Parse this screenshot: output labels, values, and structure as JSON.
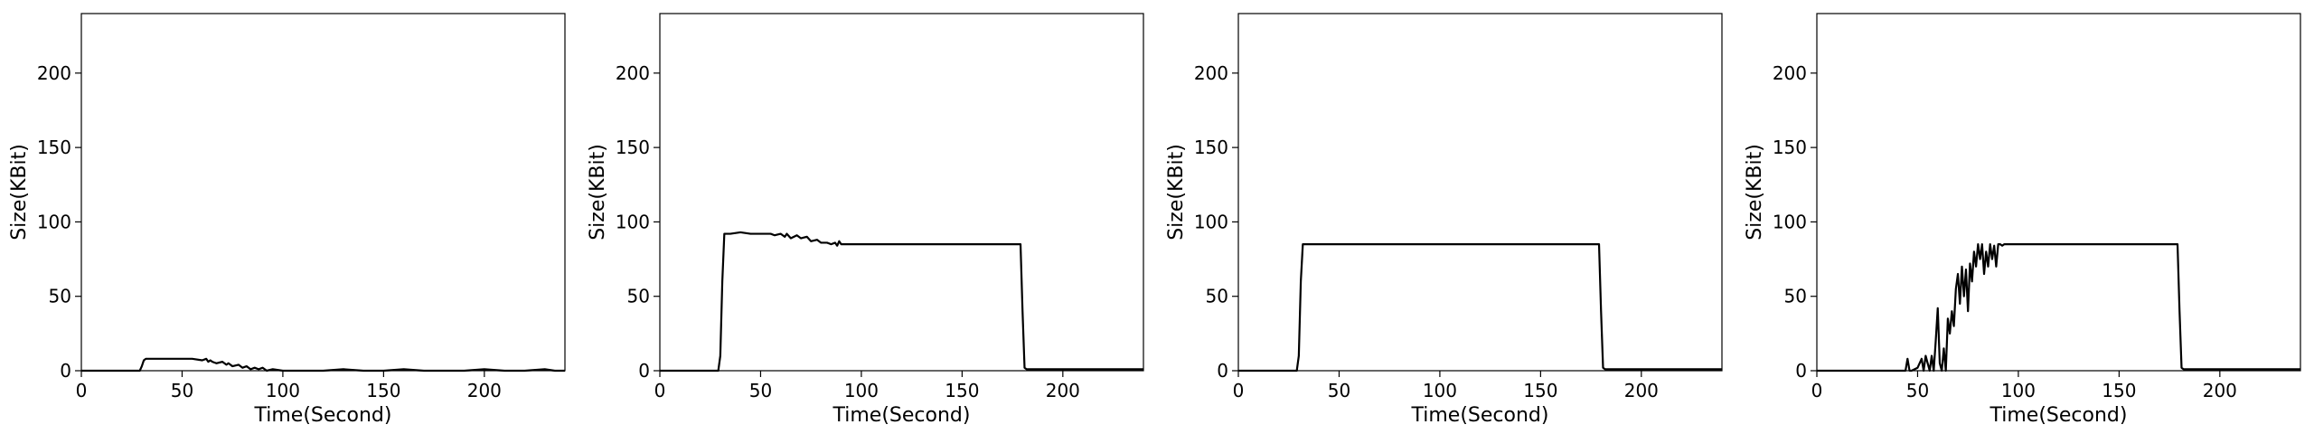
{
  "chart_data": [
    {
      "type": "line",
      "xlabel": "Time(Second)",
      "ylabel": "Size(KBit)",
      "xlim": [
        0,
        240
      ],
      "ylim": [
        0,
        240
      ],
      "xticks": [
        0,
        50,
        100,
        150,
        200
      ],
      "yticks": [
        0,
        50,
        100,
        150,
        200
      ],
      "grid": false,
      "series": [
        {
          "color": "#000000",
          "x": [
            0,
            5,
            10,
            15,
            20,
            25,
            29,
            30,
            31,
            32,
            35,
            40,
            45,
            50,
            55,
            60,
            62,
            63,
            64,
            65,
            67,
            70,
            72,
            73,
            75,
            78,
            80,
            82,
            84,
            86,
            88,
            90,
            92,
            95,
            100,
            110,
            120,
            130,
            140,
            150,
            160,
            170,
            180,
            190,
            200,
            210,
            220,
            230,
            235,
            240
          ],
          "y": [
            0,
            0,
            0,
            0,
            0,
            0,
            0,
            3,
            7,
            8,
            8,
            8,
            8,
            8,
            8,
            7,
            8,
            6,
            7,
            6,
            5,
            6,
            4,
            5,
            3,
            4,
            2,
            3,
            1,
            2,
            1,
            2,
            0,
            1,
            0,
            0,
            0,
            1,
            0,
            0,
            1,
            0,
            0,
            0,
            1,
            0,
            0,
            1,
            0,
            0
          ]
        }
      ]
    },
    {
      "type": "line",
      "xlabel": "Time(Second)",
      "ylabel": "Size(KBit)",
      "xlim": [
        0,
        240
      ],
      "ylim": [
        0,
        240
      ],
      "xticks": [
        0,
        50,
        100,
        150,
        200
      ],
      "yticks": [
        0,
        50,
        100,
        150,
        200
      ],
      "grid": false,
      "series": [
        {
          "color": "#000000",
          "x": [
            0,
            10,
            20,
            29,
            30,
            31,
            32,
            35,
            40,
            45,
            50,
            55,
            57,
            60,
            62,
            63,
            65,
            68,
            70,
            73,
            75,
            78,
            80,
            83,
            85,
            87,
            88,
            89,
            90,
            95,
            100,
            110,
            120,
            130,
            140,
            150,
            160,
            170,
            179,
            180,
            181,
            182,
            185,
            190,
            200,
            210,
            220,
            230,
            240
          ],
          "y": [
            0,
            0,
            0,
            0,
            10,
            60,
            92,
            92,
            93,
            92,
            92,
            92,
            91,
            92,
            90,
            92,
            89,
            91,
            89,
            90,
            87,
            88,
            86,
            86,
            85,
            86,
            84,
            87,
            85,
            85,
            85,
            85,
            85,
            85,
            85,
            85,
            85,
            85,
            85,
            40,
            2,
            1,
            1,
            1,
            1,
            1,
            1,
            1,
            1
          ]
        }
      ]
    },
    {
      "type": "line",
      "xlabel": "Time(Second)",
      "ylabel": "Size(KBit)",
      "xlim": [
        0,
        240
      ],
      "ylim": [
        0,
        240
      ],
      "xticks": [
        0,
        50,
        100,
        150,
        200
      ],
      "yticks": [
        0,
        50,
        100,
        150,
        200
      ],
      "grid": false,
      "series": [
        {
          "color": "#000000",
          "x": [
            0,
            10,
            20,
            29,
            30,
            31,
            32,
            35,
            40,
            50,
            60,
            70,
            80,
            90,
            100,
            110,
            120,
            130,
            140,
            150,
            160,
            170,
            179,
            180,
            181,
            182,
            185,
            190,
            200,
            210,
            220,
            230,
            240
          ],
          "y": [
            0,
            0,
            0,
            0,
            10,
            60,
            85,
            85,
            85,
            85,
            85,
            85,
            85,
            85,
            85,
            85,
            85,
            85,
            85,
            85,
            85,
            85,
            85,
            40,
            2,
            1,
            1,
            1,
            1,
            1,
            1,
            1,
            1
          ]
        }
      ]
    },
    {
      "type": "line",
      "xlabel": "Time(Second)",
      "ylabel": "Size(KBit)",
      "xlim": [
        0,
        240
      ],
      "ylim": [
        0,
        240
      ],
      "xticks": [
        0,
        50,
        100,
        150,
        200
      ],
      "yticks": [
        0,
        50,
        100,
        150,
        200
      ],
      "grid": false,
      "series": [
        {
          "color": "#000000",
          "x": [
            0,
            10,
            20,
            30,
            40,
            44,
            45,
            46,
            47,
            50,
            52,
            53,
            54,
            55,
            56,
            57,
            58,
            59,
            60,
            61,
            62,
            63,
            64,
            65,
            66,
            67,
            68,
            69,
            70,
            71,
            72,
            73,
            74,
            75,
            76,
            77,
            78,
            79,
            80,
            81,
            82,
            83,
            84,
            85,
            86,
            87,
            88,
            89,
            90,
            91,
            92,
            93,
            95,
            100,
            110,
            120,
            130,
            140,
            150,
            160,
            170,
            179,
            180,
            181,
            182,
            185,
            190,
            200,
            210,
            220,
            230,
            240
          ],
          "y": [
            0,
            0,
            0,
            0,
            0,
            0,
            8,
            0,
            0,
            2,
            8,
            0,
            10,
            5,
            0,
            10,
            0,
            20,
            42,
            5,
            0,
            15,
            0,
            35,
            25,
            40,
            30,
            55,
            65,
            45,
            70,
            50,
            68,
            40,
            72,
            60,
            80,
            70,
            85,
            75,
            85,
            65,
            80,
            70,
            85,
            75,
            84,
            70,
            85,
            85,
            84,
            85,
            85,
            85,
            85,
            85,
            85,
            85,
            85,
            85,
            85,
            85,
            40,
            2,
            1,
            1,
            1,
            1,
            1,
            1,
            1,
            1
          ]
        }
      ]
    }
  ]
}
